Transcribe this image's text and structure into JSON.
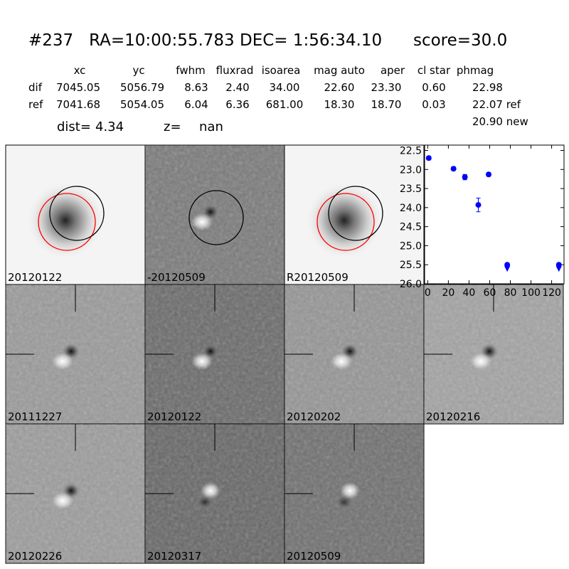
{
  "header": {
    "title": "#237   RA=10:00:55.783 DEC= 1:56:34.10      score=30.0"
  },
  "table": {
    "columns": [
      "xc",
      "yc",
      "fwhm",
      "fluxrad",
      "isoarea",
      "mag auto",
      "aper",
      "cl star",
      "phmag"
    ],
    "rows": [
      {
        "label": "dif",
        "cells": [
          "7045.05",
          "5056.79",
          "8.63",
          "2.40",
          "34.00",
          "22.60",
          "23.30",
          "0.60",
          "22.98"
        ]
      },
      {
        "label": "ref",
        "cells": [
          "7041.68",
          "5054.05",
          "6.04",
          "6.36",
          "681.00",
          "18.30",
          "18.70",
          "0.03",
          "22.07 ref"
        ]
      }
    ],
    "extra": "20.90 new"
  },
  "metrics": {
    "dist_label": "dist=",
    "dist": "4.34",
    "z_label": "z=",
    "z": "nan"
  },
  "stamps": [
    {
      "label": "20120122",
      "color": "#000000"
    },
    {
      "label": "-20120509",
      "color": "#000000"
    },
    {
      "label": "R20120509",
      "color": "#000000"
    },
    {
      "label": "20111227",
      "color": "#000000"
    },
    {
      "label": "20120122",
      "color": "#ff0000"
    },
    {
      "label": "20120202",
      "color": "#000000"
    },
    {
      "label": "20120216",
      "color": "#000000"
    },
    {
      "label": "20120226",
      "color": "#000000"
    },
    {
      "label": "20120317",
      "color": "#000000"
    },
    {
      "label": "20120509",
      "color": "#000000"
    }
  ],
  "chart_data": {
    "type": "scatter",
    "x": [
      1,
      25,
      36,
      49,
      59,
      77,
      127
    ],
    "series": [
      {
        "color": "#0000ff",
        "values": [
          22.7,
          22.98,
          23.2,
          23.93,
          23.13,
          25.5,
          25.5
        ],
        "errors": [
          0.05,
          0.05,
          0.07,
          0.18,
          0.05,
          0,
          0
        ],
        "upper_limits": [
          false,
          false,
          false,
          false,
          false,
          true,
          true
        ]
      }
    ],
    "xlim": [
      -3,
      132
    ],
    "ylim": [
      26.0,
      22.36
    ],
    "xticks": [
      0,
      20,
      40,
      60,
      80,
      100,
      120
    ],
    "yticks": [
      {
        "value": 22.5,
        "label": "22.5"
      },
      {
        "value": 23,
        "label": "23.0"
      },
      {
        "value": 23.5,
        "label": "23.5"
      },
      {
        "value": 24,
        "label": "24.0"
      },
      {
        "value": 24.5,
        "label": "24.5"
      },
      {
        "value": 25,
        "label": "25.0"
      },
      {
        "value": 25.5,
        "label": "25.5"
      },
      {
        "value": 26,
        "label": "26.0"
      }
    ]
  }
}
